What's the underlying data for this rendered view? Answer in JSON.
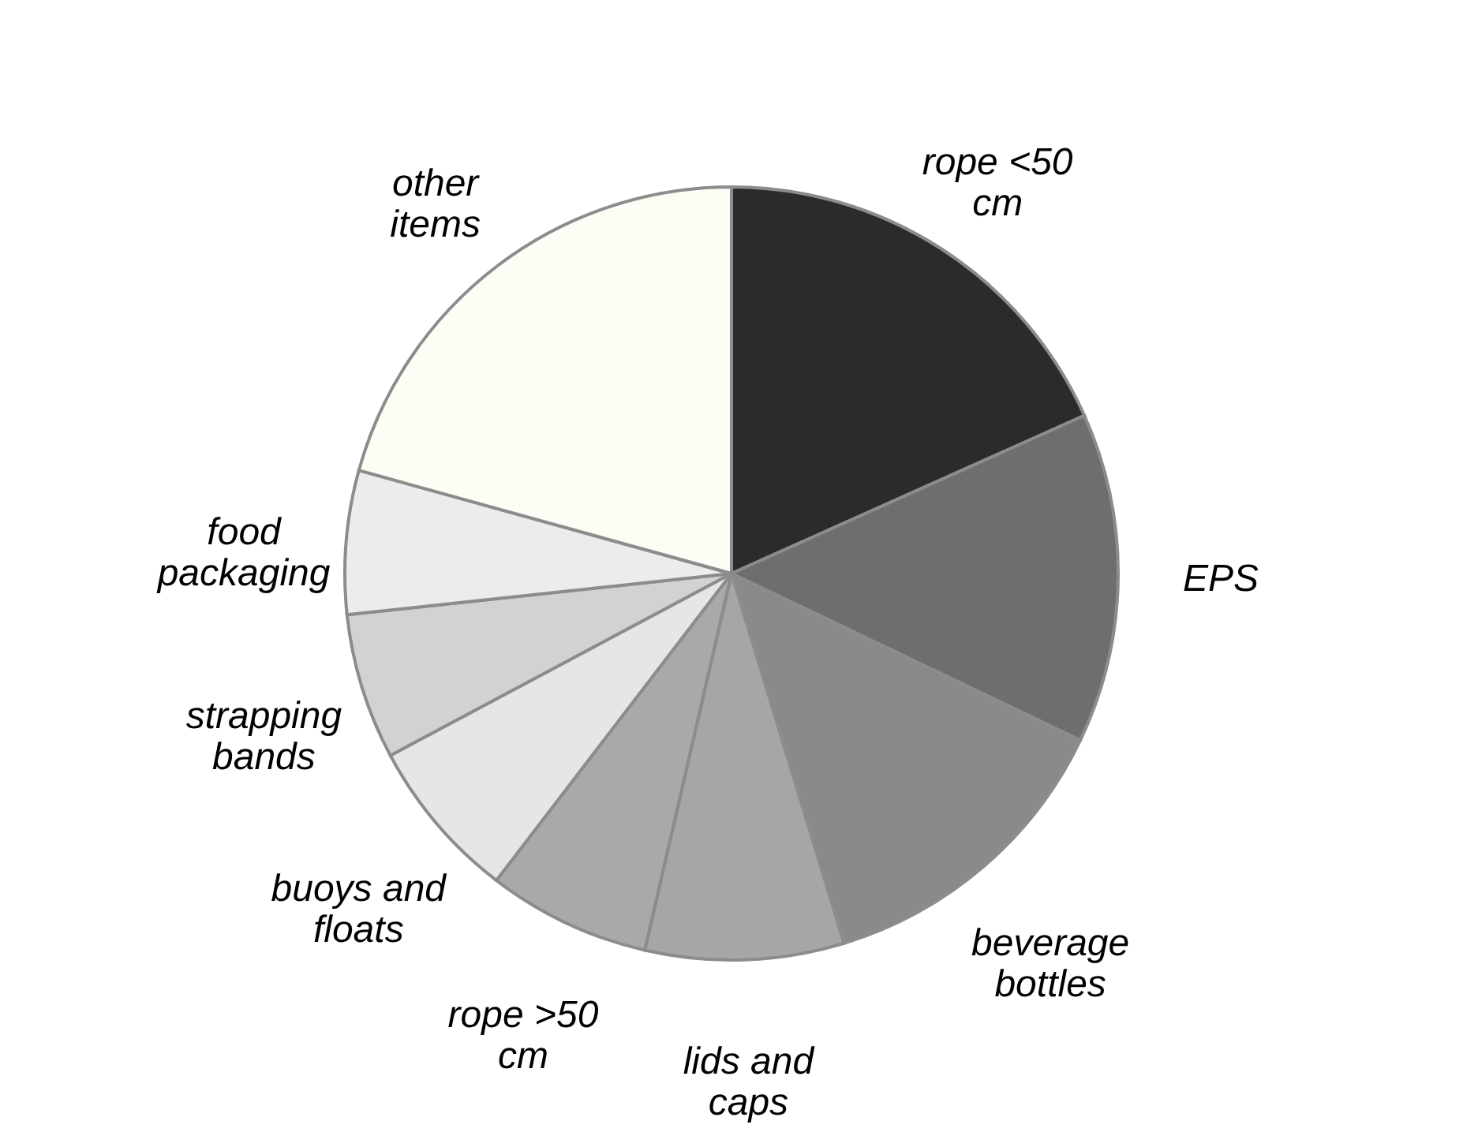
{
  "chart_data": {
    "type": "pie",
    "categories": [
      "rope <50 cm",
      "EPS",
      "beverage bottles",
      "lids and caps",
      "rope >50 cm",
      "buoys and floats",
      "strapping bands",
      "food packaging",
      "other items"
    ],
    "values": [
      18.3,
      13.8,
      13.2,
      8.3,
      6.8,
      6.8,
      6.1,
      6.0,
      20.7
    ],
    "colors": [
      "#2b2b2b",
      "#6e6e6e",
      "#8a8a8a",
      "#a6a6a6",
      "#a9a9a9",
      "#e6e6e6",
      "#d2d2d2",
      "#ececec",
      "#fdfdf5"
    ]
  }
}
